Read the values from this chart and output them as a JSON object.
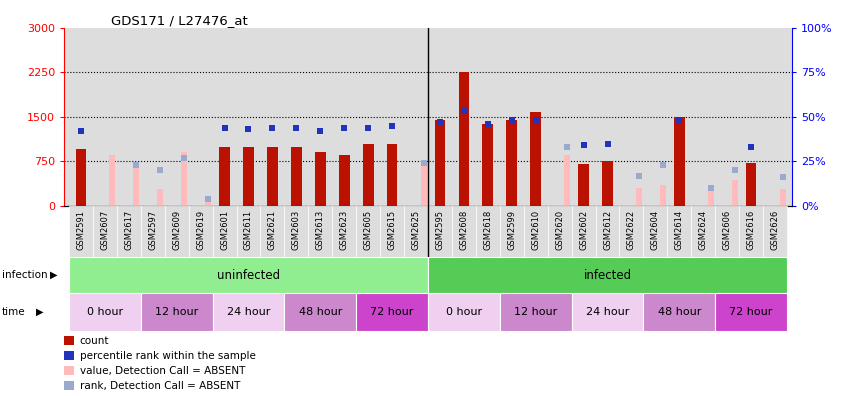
{
  "title": "GDS171 / L27476_at",
  "samples": [
    "GSM2591",
    "GSM2607",
    "GSM2617",
    "GSM2597",
    "GSM2609",
    "GSM2619",
    "GSM2601",
    "GSM2611",
    "GSM2621",
    "GSM2603",
    "GSM2613",
    "GSM2623",
    "GSM2605",
    "GSM2615",
    "GSM2625",
    "GSM2595",
    "GSM2608",
    "GSM2618",
    "GSM2599",
    "GSM2610",
    "GSM2620",
    "GSM2602",
    "GSM2612",
    "GSM2622",
    "GSM2604",
    "GSM2614",
    "GSM2624",
    "GSM2606",
    "GSM2616",
    "GSM2626"
  ],
  "count_values": [
    950,
    0,
    0,
    0,
    0,
    0,
    1000,
    1000,
    1000,
    1000,
    900,
    850,
    1050,
    1050,
    0,
    1450,
    2250,
    1380,
    1450,
    1580,
    0,
    700,
    750,
    0,
    0,
    1500,
    0,
    0,
    720,
    0
  ],
  "absent_count_values": [
    0,
    850,
    700,
    280,
    900,
    150,
    0,
    0,
    0,
    0,
    0,
    0,
    0,
    0,
    720,
    0,
    0,
    0,
    0,
    0,
    850,
    0,
    0,
    300,
    350,
    0,
    250,
    430,
    0,
    290
  ],
  "rank_values": [
    42,
    0,
    0,
    0,
    0,
    0,
    44,
    43,
    44,
    44,
    42,
    44,
    44,
    45,
    0,
    47,
    53,
    46,
    48,
    48,
    0,
    34,
    35,
    0,
    0,
    48,
    0,
    0,
    33,
    0
  ],
  "absent_rank_values": [
    0,
    0,
    23,
    20,
    27,
    4,
    0,
    0,
    0,
    0,
    0,
    0,
    0,
    0,
    24,
    0,
    0,
    0,
    0,
    0,
    33,
    0,
    0,
    17,
    23,
    0,
    10,
    20,
    0,
    16
  ],
  "ylim_left": [
    0,
    3000
  ],
  "ylim_right": [
    0,
    100
  ],
  "yticks_left": [
    0,
    750,
    1500,
    2250,
    3000
  ],
  "yticks_right": [
    0,
    25,
    50,
    75,
    100
  ],
  "infection_groups": [
    {
      "label": "uninfected",
      "start": 0,
      "end": 15,
      "color": "#90ee90"
    },
    {
      "label": "infected",
      "start": 15,
      "end": 30,
      "color": "#55cc55"
    }
  ],
  "time_groups": [
    {
      "label": "0 hour",
      "start": 0,
      "end": 3,
      "color": "#f0d0f0"
    },
    {
      "label": "12 hour",
      "start": 3,
      "end": 6,
      "color": "#cc88cc"
    },
    {
      "label": "24 hour",
      "start": 6,
      "end": 9,
      "color": "#f0d0f0"
    },
    {
      "label": "48 hour",
      "start": 9,
      "end": 12,
      "color": "#cc88cc"
    },
    {
      "label": "72 hour",
      "start": 12,
      "end": 15,
      "color": "#cc44cc"
    },
    {
      "label": "0 hour",
      "start": 15,
      "end": 18,
      "color": "#f0d0f0"
    },
    {
      "label": "12 hour",
      "start": 18,
      "end": 21,
      "color": "#cc88cc"
    },
    {
      "label": "24 hour",
      "start": 21,
      "end": 24,
      "color": "#f0d0f0"
    },
    {
      "label": "48 hour",
      "start": 24,
      "end": 27,
      "color": "#cc88cc"
    },
    {
      "label": "72 hour",
      "start": 27,
      "end": 30,
      "color": "#cc44cc"
    }
  ],
  "bar_color_present": "#bb1100",
  "bar_color_absent": "#ffbbbb",
  "rank_color_present": "#2233bb",
  "rank_color_absent": "#99aacc",
  "bar_width": 0.45,
  "axis_bg": "#dddddd",
  "legend_items": [
    {
      "label": "count",
      "color": "#bb1100"
    },
    {
      "label": "percentile rank within the sample",
      "color": "#2233bb"
    },
    {
      "label": "value, Detection Call = ABSENT",
      "color": "#ffbbbb"
    },
    {
      "label": "rank, Detection Call = ABSENT",
      "color": "#99aacc"
    }
  ]
}
